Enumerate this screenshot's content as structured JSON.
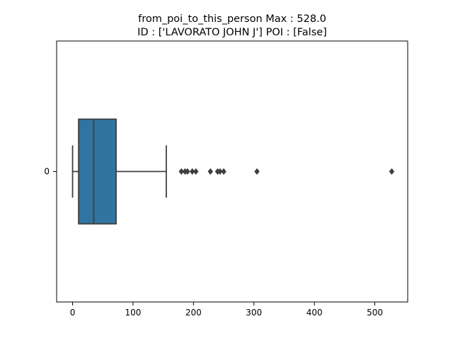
{
  "chart_data": {
    "type": "boxplot",
    "orientation": "horizontal",
    "title_lines": [
      "from_poi_to_this_person  Max : 528.0",
      "ID : ['LAVORATO JOHN J']  POI : [False]"
    ],
    "xlabel": "",
    "ylabel": "",
    "categories": [
      "0"
    ],
    "xlim": [
      -26.4,
      554.4
    ],
    "xticks": [
      0,
      100,
      200,
      300,
      400,
      500
    ],
    "grid": false,
    "box": {
      "whisker_low": 0,
      "q1": 10,
      "median": 35,
      "q3": 72,
      "whisker_high": 155
    },
    "outliers": [
      180,
      186,
      190,
      198,
      204,
      228,
      240,
      244,
      250,
      305,
      528
    ],
    "box_color": "#3274a1",
    "line_color": "#3f3f3f"
  }
}
